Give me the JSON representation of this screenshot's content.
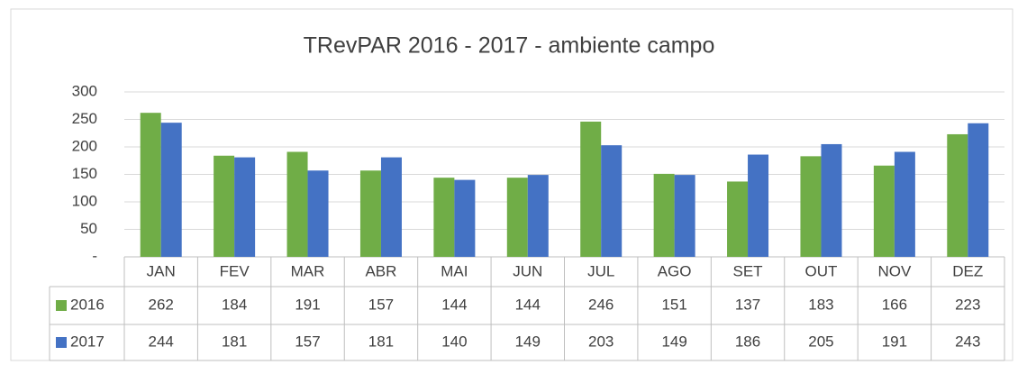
{
  "chart_data": {
    "type": "bar",
    "title": "TRevPAR 2016 - 2017 - ambiente campo",
    "categories": [
      "JAN",
      "FEV",
      "MAR",
      "ABR",
      "MAI",
      "JUN",
      "JUL",
      "AGO",
      "SET",
      "OUT",
      "NOV",
      "DEZ"
    ],
    "series": [
      {
        "name": "2016",
        "color": "#70ad47",
        "values": [
          262,
          184,
          191,
          157,
          144,
          144,
          246,
          151,
          137,
          183,
          166,
          223
        ]
      },
      {
        "name": "2017",
        "color": "#4472c4",
        "values": [
          244,
          181,
          157,
          181,
          140,
          149,
          203,
          149,
          186,
          205,
          191,
          243
        ]
      }
    ],
    "ylim": [
      0,
      300
    ],
    "yticks": [
      {
        "value": 0,
        "label": "-"
      },
      50,
      100,
      150,
      200,
      250,
      300
    ],
    "grid": true
  }
}
